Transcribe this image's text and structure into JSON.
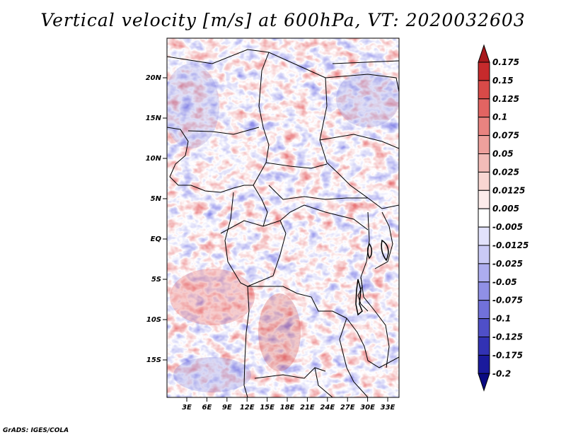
{
  "title": "Vertical velocity [m/s] at 600hPa, VT: 2020032603",
  "credit": "GrADS: IGES/COLA",
  "map": {
    "lat_labels": [
      "20N",
      "15N",
      "10N",
      "5N",
      "EQ",
      "5S",
      "10S",
      "15S"
    ],
    "lon_labels": [
      "3E",
      "6E",
      "9E",
      "12E",
      "15E",
      "18E",
      "21E",
      "24E",
      "27E",
      "30E",
      "33E"
    ]
  },
  "colorbar": {
    "levels": [
      "0.175",
      "0.15",
      "0.125",
      "0.1",
      "0.075",
      "0.05",
      "0.025",
      "0.0125",
      "0.005",
      "-0.005",
      "-0.0125",
      "-0.025",
      "-0.05",
      "-0.075",
      "-0.1",
      "-0.125",
      "-0.175",
      "-0.2"
    ],
    "colors": [
      "#a8181c",
      "#c62a2c",
      "#d84a48",
      "#e26462",
      "#e98380",
      "#eea09c",
      "#f3bcb8",
      "#f8d6d2",
      "#fcecea",
      "#ffffff",
      "#e2e2fc",
      "#cacaf6",
      "#adadef",
      "#9090e6",
      "#7171da",
      "#4f4fc8",
      "#3232b4",
      "#1a1a9c",
      "#0a0a82"
    ]
  }
}
